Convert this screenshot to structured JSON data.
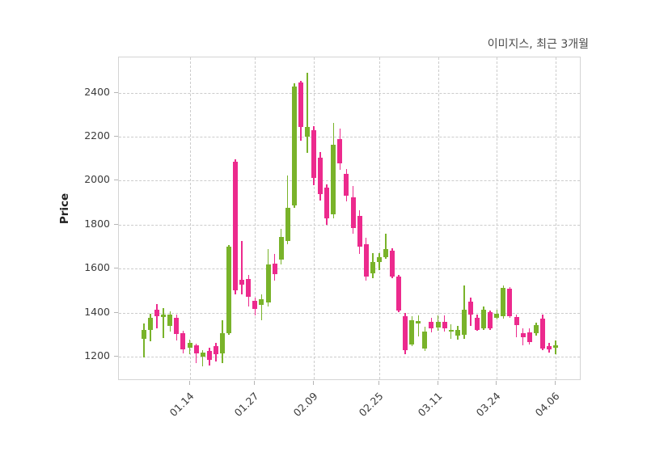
{
  "title": "이미지스, 최근 3개월",
  "chart_data": {
    "type": "candlestick",
    "title": "이미지스, 최근 3개월",
    "ylabel": "Price",
    "xlabel": "",
    "grid": true,
    "legend_position": "none",
    "up_color": "#79b32a",
    "down_color": "#ec2a8d",
    "grid_color": "#cccccc",
    "frame_color": "#d4d4d4",
    "y_ticks": [
      1200,
      1400,
      1600,
      1800,
      2000,
      2200,
      2400
    ],
    "ylim": [
      1090,
      2560
    ],
    "x_tick_labels": [
      "01.14",
      "01.27",
      "02.09",
      "02.25",
      "03.11",
      "03.24",
      "04.06"
    ],
    "x_tick_indices": [
      7,
      17,
      26,
      36,
      45,
      54,
      63
    ],
    "num_candles": 64,
    "candles_format": [
      "open",
      "high",
      "low",
      "close"
    ],
    "candles": [
      [
        1280,
        1350,
        1195,
        1320
      ],
      [
        1320,
        1395,
        1270,
        1375
      ],
      [
        1415,
        1440,
        1330,
        1385
      ],
      [
        1380,
        1420,
        1285,
        1392
      ],
      [
        1340,
        1405,
        1315,
        1390
      ],
      [
        1378,
        1390,
        1275,
        1302
      ],
      [
        1307,
        1318,
        1215,
        1232
      ],
      [
        1240,
        1278,
        1213,
        1262
      ],
      [
        1250,
        1258,
        1172,
        1216
      ],
      [
        1201,
        1228,
        1155,
        1219
      ],
      [
        1226,
        1242,
        1160,
        1186
      ],
      [
        1247,
        1262,
        1180,
        1211
      ],
      [
        1216,
        1366,
        1172,
        1306
      ],
      [
        1306,
        1707,
        1300,
        1700
      ],
      [
        2086,
        2098,
        1484,
        1501
      ],
      [
        1551,
        1724,
        1482,
        1528
      ],
      [
        1552,
        1570,
        1428,
        1472
      ],
      [
        1453,
        1470,
        1386,
        1417
      ],
      [
        1435,
        1483,
        1366,
        1460
      ],
      [
        1448,
        1688,
        1428,
        1620
      ],
      [
        1622,
        1668,
        1544,
        1576
      ],
      [
        1640,
        1780,
        1620,
        1745
      ],
      [
        1724,
        2022,
        1710,
        1876
      ],
      [
        1889,
        2444,
        1875,
        2428
      ],
      [
        2445,
        2452,
        2182,
        2245
      ],
      [
        2200,
        2490,
        2125,
        2245
      ],
      [
        2231,
        2248,
        1980,
        2011
      ],
      [
        2103,
        2130,
        1909,
        1938
      ],
      [
        1968,
        1982,
        1799,
        1827
      ],
      [
        1846,
        2263,
        1827,
        2164
      ],
      [
        2188,
        2235,
        2048,
        2078
      ],
      [
        2029,
        2054,
        1907,
        1931
      ],
      [
        1925,
        1974,
        1760,
        1784
      ],
      [
        1840,
        1864,
        1668,
        1699
      ],
      [
        1711,
        1742,
        1546,
        1564
      ],
      [
        1577,
        1672,
        1555,
        1632
      ],
      [
        1632,
        1671,
        1593,
        1651
      ],
      [
        1651,
        1760,
        1644,
        1688
      ],
      [
        1683,
        1691,
        1556,
        1564
      ],
      [
        1564,
        1571,
        1401,
        1411
      ],
      [
        1384,
        1399,
        1210,
        1231
      ],
      [
        1256,
        1384,
        1249,
        1365
      ],
      [
        1350,
        1386,
        1292,
        1363
      ],
      [
        1237,
        1335,
        1225,
        1316
      ],
      [
        1359,
        1377,
        1311,
        1329
      ],
      [
        1332,
        1387,
        1316,
        1359
      ],
      [
        1359,
        1386,
        1313,
        1329
      ],
      [
        1313,
        1349,
        1280,
        1323
      ],
      [
        1295,
        1340,
        1278,
        1320
      ],
      [
        1298,
        1525,
        1280,
        1414
      ],
      [
        1451,
        1469,
        1341,
        1390
      ],
      [
        1378,
        1390,
        1317,
        1323
      ],
      [
        1329,
        1427,
        1323,
        1414
      ],
      [
        1402,
        1411,
        1320,
        1329
      ],
      [
        1378,
        1412,
        1371,
        1396
      ],
      [
        1384,
        1522,
        1374,
        1512
      ],
      [
        1509,
        1516,
        1378,
        1384
      ],
      [
        1381,
        1391,
        1289,
        1344
      ],
      [
        1308,
        1328,
        1252,
        1287
      ],
      [
        1311,
        1330,
        1256,
        1268
      ],
      [
        1305,
        1356,
        1295,
        1342
      ],
      [
        1373,
        1391,
        1229,
        1237
      ],
      [
        1249,
        1262,
        1218,
        1233
      ],
      [
        1240,
        1275,
        1212,
        1252
      ]
    ]
  }
}
